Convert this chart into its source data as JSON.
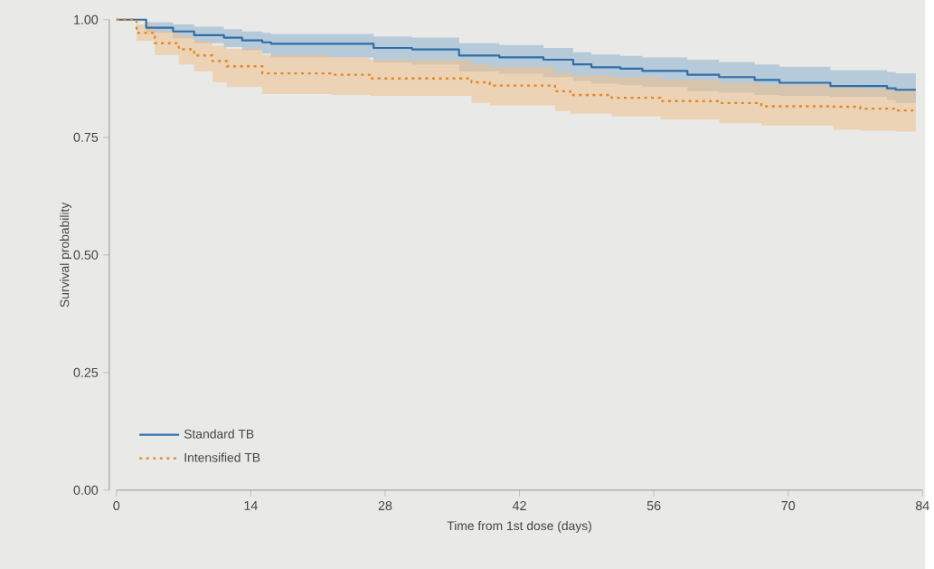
{
  "chart_data": {
    "type": "step",
    "xlabel": "Time from 1st dose (days)",
    "ylabel": "Survival probability",
    "xlim": [
      0,
      84
    ],
    "xticks": [
      0,
      14,
      28,
      42,
      56,
      70,
      84
    ],
    "ylim": [
      0,
      1
    ],
    "yticks": [
      {
        "value": 0,
        "label": "0.00"
      },
      {
        "value": 0.25,
        "label": "0.25"
      },
      {
        "value": 0.5,
        "label": "0.50"
      },
      {
        "value": 0.75,
        "label": "0.75"
      },
      {
        "value": 1,
        "label": "1.00"
      }
    ],
    "legend": "bottom left",
    "series": [
      {
        "name": "Standard TB",
        "color": "#2f6ea6",
        "line_style": "solid",
        "x": [
          0,
          3.1,
          5.9,
          8.1,
          11.2,
          13.1,
          15.2,
          16.1,
          26.8,
          30.8,
          35.7,
          39.9,
          44.5,
          47.6,
          49.5,
          52.5,
          54.8,
          59.5,
          62.8,
          66.5,
          69.1,
          74.4,
          80.3,
          81.2,
          83.3
        ],
        "values": [
          1.0,
          0.983,
          0.975,
          0.967,
          0.962,
          0.956,
          0.952,
          0.949,
          0.94,
          0.937,
          0.924,
          0.92,
          0.915,
          0.905,
          0.899,
          0.896,
          0.891,
          0.883,
          0.878,
          0.872,
          0.866,
          0.859,
          0.854,
          0.851,
          0.851
        ],
        "upper": [
          1.0,
          0.995,
          0.99,
          0.985,
          0.98,
          0.975,
          0.972,
          0.97,
          0.964,
          0.962,
          0.95,
          0.946,
          0.94,
          0.931,
          0.926,
          0.923,
          0.92,
          0.915,
          0.91,
          0.905,
          0.9,
          0.893,
          0.889,
          0.886,
          0.886
        ],
        "lower": [
          1.0,
          0.972,
          0.96,
          0.95,
          0.942,
          0.935,
          0.928,
          0.92,
          0.909,
          0.905,
          0.89,
          0.885,
          0.878,
          0.87,
          0.864,
          0.861,
          0.857,
          0.848,
          0.845,
          0.84,
          0.838,
          0.836,
          0.83,
          0.823,
          0.823
        ]
      },
      {
        "name": "Intensified TB",
        "color": "#e08a2a",
        "line_style": "dotted",
        "x": [
          0,
          2.1,
          4.0,
          6.5,
          8.1,
          10.0,
          11.5,
          15.2,
          22.4,
          26.4,
          37.0,
          38.9,
          45.7,
          47.3,
          51.6,
          56.7,
          62.8,
          67.2,
          74.7,
          77.5,
          81.2,
          83.3
        ],
        "values": [
          1.0,
          0.972,
          0.95,
          0.937,
          0.924,
          0.912,
          0.901,
          0.886,
          0.883,
          0.875,
          0.867,
          0.86,
          0.848,
          0.84,
          0.834,
          0.827,
          0.823,
          0.816,
          0.815,
          0.811,
          0.807,
          0.807
        ],
        "upper": [
          1.0,
          0.99,
          0.975,
          0.965,
          0.955,
          0.945,
          0.938,
          0.925,
          0.92,
          0.915,
          0.905,
          0.9,
          0.888,
          0.882,
          0.878,
          0.872,
          0.866,
          0.862,
          0.858,
          0.855,
          0.85,
          0.848
        ],
        "lower": [
          1.0,
          0.955,
          0.925,
          0.905,
          0.89,
          0.867,
          0.857,
          0.842,
          0.84,
          0.838,
          0.823,
          0.818,
          0.806,
          0.8,
          0.795,
          0.788,
          0.78,
          0.775,
          0.766,
          0.764,
          0.762,
          0.762
        ]
      }
    ]
  }
}
